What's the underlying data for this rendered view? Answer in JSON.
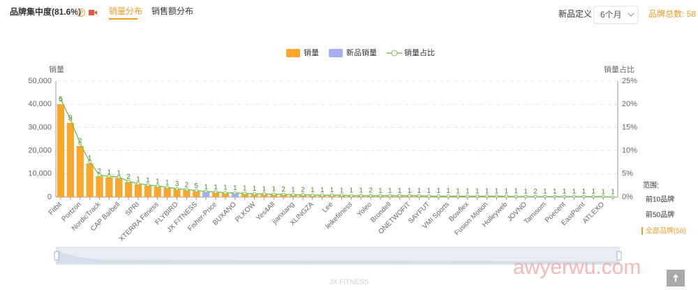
{
  "header": {
    "title": "品牌集中度(81.6%)",
    "tabs": [
      "销量分布",
      "销售额分布"
    ],
    "new_def_label": "新品定义",
    "period": "6个月",
    "brand_total": "品牌总数: 58"
  },
  "range_panel": {
    "title": "范围:",
    "options": [
      "前10品牌",
      "前50品牌",
      "全部品牌(58)"
    ]
  },
  "slider": {
    "label": "JX FITNESS"
  },
  "watermark": "awyerwu.com",
  "chart_data": {
    "type": "bar",
    "y_label": "销量",
    "y2_label": "销量占比",
    "categories": [
      "Fitbit",
      null,
      "Portzon",
      null,
      "NordicTrack",
      null,
      "CAP Barbell",
      null,
      "SPRI",
      null,
      "XTERRA Fitness",
      null,
      "FLYBIRD",
      null,
      "JX FITNESS",
      null,
      "Fisher-Price",
      null,
      "BUXANO",
      null,
      "PLKOW",
      null,
      "Yes4All",
      null,
      "jianxiang",
      null,
      "XLINGZA",
      null,
      "Lee",
      null,
      "leikefitness",
      null,
      "Yoleo",
      null,
      "Brondell",
      null,
      "ONETWOFIT",
      null,
      "SAYFUT",
      null,
      "VMI Sports",
      null,
      "Bowflex",
      null,
      "Fusion Motion",
      null,
      "Holleyweb",
      null,
      "JOVNO",
      null,
      "Tamisom",
      null,
      "Poecent",
      null,
      "EastPoint",
      null,
      "ATLEXO",
      null
    ],
    "series": [
      {
        "name": "销量",
        "color": "#f9a72b",
        "values": [
          40000,
          32000,
          22000,
          14500,
          9000,
          8500,
          8200,
          6500,
          5500,
          5000,
          4500,
          4000,
          3500,
          3000,
          2600,
          null,
          2000,
          1800,
          null,
          1500,
          1400,
          1300,
          1200,
          1100,
          1000,
          900,
          850,
          800,
          750,
          700,
          650,
          600,
          580,
          560,
          540,
          520,
          500,
          480,
          460,
          440,
          420,
          400,
          380,
          360,
          340,
          320,
          300,
          280,
          260,
          240,
          220,
          200,
          180,
          160,
          140,
          120,
          100,
          80
        ]
      },
      {
        "name": "新品销量",
        "color": "#a3aef5",
        "values": [
          null,
          null,
          null,
          null,
          null,
          null,
          null,
          null,
          null,
          null,
          null,
          null,
          null,
          null,
          null,
          2200,
          null,
          null,
          1700,
          null,
          null,
          null,
          null,
          null,
          null,
          null,
          null,
          null,
          null,
          null,
          null,
          null,
          null,
          null,
          null,
          null,
          null,
          null,
          null,
          null,
          null,
          null,
          null,
          null,
          null,
          null,
          null,
          null,
          null,
          null,
          null,
          null,
          null,
          null,
          null,
          null,
          null,
          null
        ]
      },
      {
        "name": "销量占比",
        "color": "#7dc35b",
        "axis": "y2",
        "type": "line",
        "values": [
          21.1,
          16.8,
          11.6,
          7.6,
          4.7,
          4.5,
          4.3,
          3.4,
          2.9,
          2.6,
          2.4,
          2.1,
          1.8,
          1.6,
          1.4,
          1.2,
          1.1,
          0.9,
          0.9,
          0.8,
          0.7,
          0.7,
          0.6,
          0.6,
          0.5,
          0.5,
          0.4,
          0.4,
          0.4,
          0.4,
          0.3,
          0.3,
          0.3,
          0.3,
          0.3,
          0.3,
          0.3,
          0.3,
          0.2,
          0.2,
          0.2,
          0.2,
          0.2,
          0.2,
          0.2,
          0.2,
          0.2,
          0.1,
          0.1,
          0.1,
          0.1,
          0.1,
          0.1,
          0.1,
          0.1,
          0.1,
          0.1,
          0.0
        ]
      }
    ],
    "counts": [
      5,
      9,
      2,
      1,
      2,
      1,
      1,
      2,
      1,
      1,
      1,
      1,
      3,
      2,
      5,
      1,
      1,
      1,
      1,
      1,
      1,
      1,
      1,
      2,
      1,
      2,
      1,
      1,
      1,
      1,
      1,
      1,
      2,
      1,
      1,
      1,
      1,
      1,
      1,
      1,
      1,
      1,
      1,
      1,
      1,
      1,
      1,
      1,
      1,
      2,
      1,
      1,
      1,
      1,
      1,
      1,
      1,
      1
    ],
    "ylim": [
      0,
      50000
    ],
    "yticks": [
      0,
      {
        "value": 10000,
        "label": "10,000"
      },
      {
        "value": 20000,
        "label": "20,000"
      },
      {
        "value": 30000,
        "label": "30,000"
      },
      {
        "value": 40000,
        "label": "40,000"
      },
      {
        "value": 50000,
        "label": "50,000"
      }
    ],
    "y2lim": [
      0,
      25
    ],
    "y2ticks": [
      {
        "value": 0,
        "label": "0%"
      },
      {
        "value": 5,
        "label": "5%"
      },
      {
        "value": 10,
        "label": "10%"
      },
      {
        "value": 15,
        "label": "15%"
      },
      {
        "value": 20,
        "label": "20%"
      },
      {
        "value": 25,
        "label": "25%"
      }
    ],
    "grid": true,
    "legend": "top"
  }
}
